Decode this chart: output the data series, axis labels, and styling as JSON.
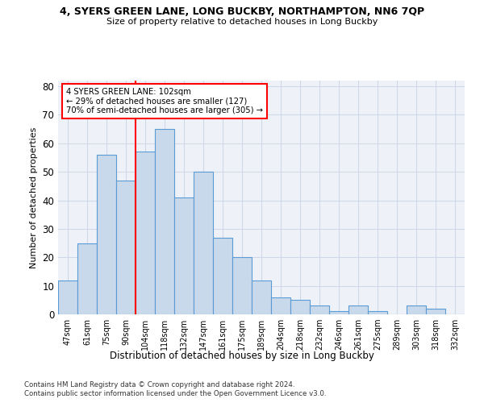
{
  "title1": "4, SYERS GREEN LANE, LONG BUCKBY, NORTHAMPTON, NN6 7QP",
  "title2": "Size of property relative to detached houses in Long Buckby",
  "xlabel": "Distribution of detached houses by size in Long Buckby",
  "ylabel": "Number of detached properties",
  "categories": [
    "47sqm",
    "61sqm",
    "75sqm",
    "90sqm",
    "104sqm",
    "118sqm",
    "132sqm",
    "147sqm",
    "161sqm",
    "175sqm",
    "189sqm",
    "204sqm",
    "218sqm",
    "232sqm",
    "246sqm",
    "261sqm",
    "275sqm",
    "289sqm",
    "303sqm",
    "318sqm",
    "332sqm"
  ],
  "values": [
    12,
    25,
    56,
    47,
    57,
    65,
    41,
    50,
    27,
    20,
    12,
    6,
    5,
    3,
    1,
    3,
    1,
    0,
    3,
    2,
    0
  ],
  "bar_color": "#c8d9eb",
  "bar_edge_color": "#5b9bd5",
  "grid_color": "#d0d8e8",
  "background_color": "#eef2f8",
  "vline_color": "red",
  "vline_index": 3.5,
  "annotation_text": "4 SYERS GREEN LANE: 102sqm\n← 29% of detached houses are smaller (127)\n70% of semi-detached houses are larger (305) →",
  "annotation_box_color": "white",
  "annotation_box_edge": "red",
  "ylim": [
    0,
    82
  ],
  "yticks": [
    0,
    10,
    20,
    30,
    40,
    50,
    60,
    70,
    80
  ],
  "footnote1": "Contains HM Land Registry data © Crown copyright and database right 2024.",
  "footnote2": "Contains public sector information licensed under the Open Government Licence v3.0."
}
